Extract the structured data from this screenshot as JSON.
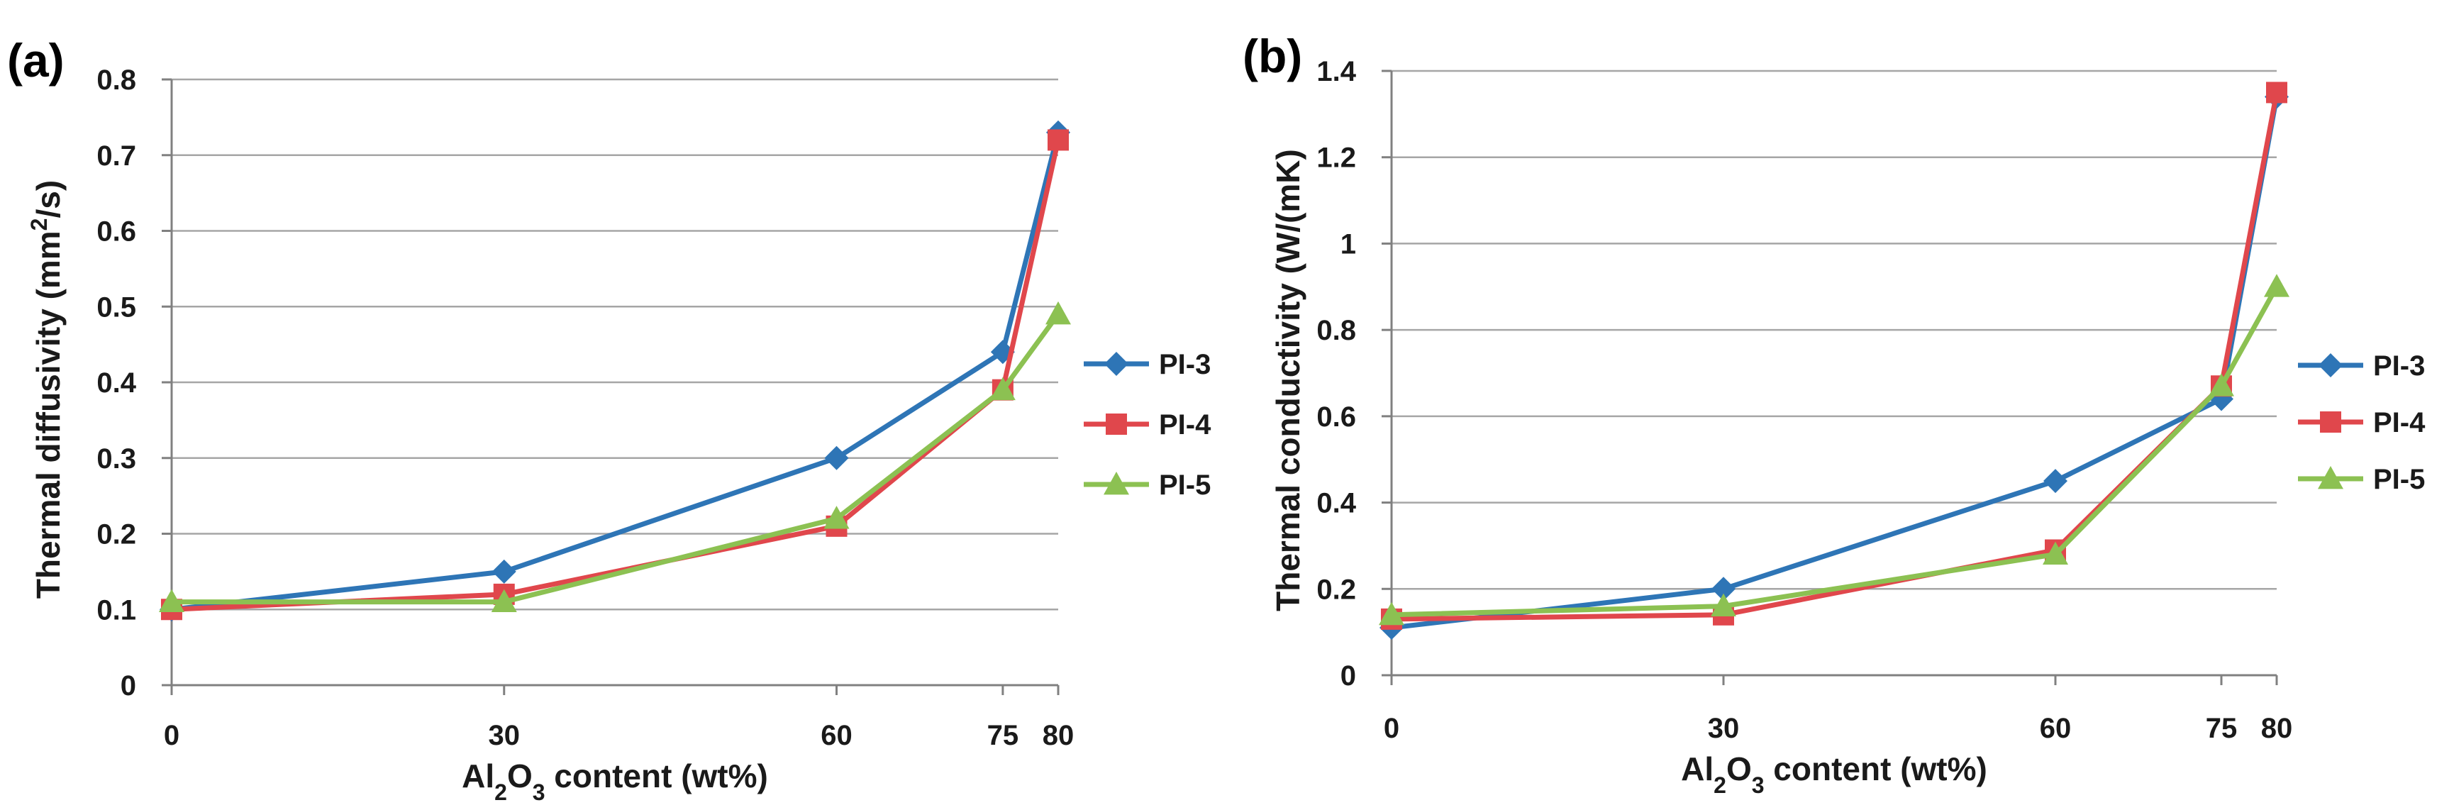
{
  "colors": {
    "pi3": "#2e75b6",
    "pi4": "#e0474c",
    "pi5": "#8cc152",
    "grid": "#a6a6a6",
    "axis": "#808080"
  },
  "chart_data": [
    {
      "type": "line",
      "panel_label": "(a)",
      "x": [
        0,
        30,
        60,
        75,
        80
      ],
      "x_tick_labels": [
        "0",
        "30",
        "60",
        "75",
        "80"
      ],
      "xlabel": {
        "pre": "Al",
        "sub1": "2",
        "mid": "O",
        "sub2": "3",
        "post": " content (wt%)"
      },
      "ylabel": {
        "pre": "Thermal diffusivity (mm",
        "sup": "2",
        "post": "/s)"
      },
      "ylim": [
        0,
        0.8
      ],
      "y_ticks": [
        0,
        0.1,
        0.2,
        0.3,
        0.4,
        0.5,
        0.6,
        0.7,
        0.8
      ],
      "y_tick_labels": [
        "0",
        "0.1",
        "0.2",
        "0.3",
        "0.4",
        "0.5",
        "0.6",
        "0.7",
        "0.8"
      ],
      "grid": true,
      "legend_position": "right",
      "series": [
        {
          "name": "PI-3",
          "marker": "diamond",
          "values": [
            0.1,
            0.15,
            0.3,
            0.44,
            0.73
          ]
        },
        {
          "name": "PI-4",
          "marker": "square",
          "values": [
            0.1,
            0.12,
            0.21,
            0.39,
            0.72
          ]
        },
        {
          "name": "PI-5",
          "marker": "triangle",
          "values": [
            0.11,
            0.11,
            0.22,
            0.39,
            0.49
          ]
        }
      ]
    },
    {
      "type": "line",
      "panel_label": "(b)",
      "x": [
        0,
        30,
        60,
        75,
        80
      ],
      "x_tick_labels": [
        "0",
        "30",
        "60",
        "75",
        "80"
      ],
      "xlabel": {
        "pre": "Al",
        "sub1": "2",
        "mid": "O",
        "sub2": "3",
        "post": " content (wt%)"
      },
      "ylabel": {
        "pre": "Thermal conductivity (W/(mK)",
        "sup": "",
        "post": ""
      },
      "ylim": [
        0,
        1.4
      ],
      "y_ticks": [
        0,
        0.2,
        0.4,
        0.6,
        0.8,
        1,
        1.2,
        1.4
      ],
      "y_tick_labels": [
        "0",
        "0.2",
        "0.4",
        "0.6",
        "0.8",
        "1",
        "1.2",
        "1.4"
      ],
      "grid": true,
      "legend_position": "right",
      "series": [
        {
          "name": "PI-3",
          "marker": "diamond",
          "values": [
            0.11,
            0.2,
            0.45,
            0.64,
            1.34
          ]
        },
        {
          "name": "PI-4",
          "marker": "square",
          "values": [
            0.13,
            0.14,
            0.29,
            0.67,
            1.35
          ]
        },
        {
          "name": "PI-5",
          "marker": "triangle",
          "values": [
            0.14,
            0.16,
            0.28,
            0.67,
            0.9
          ]
        }
      ]
    }
  ]
}
